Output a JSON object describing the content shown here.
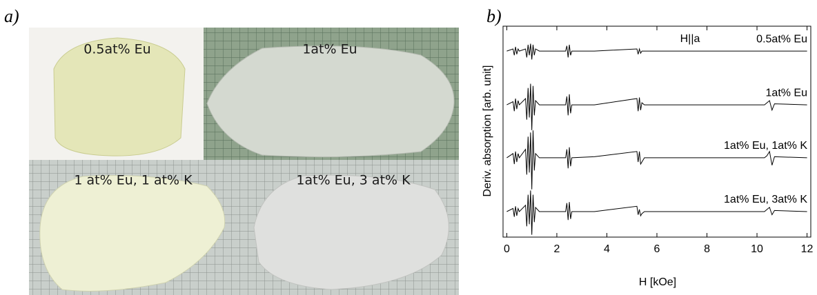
{
  "panel_a": {
    "label": "a)",
    "photos": [
      "0.5at% Eu",
      "1at% Eu",
      "1 at% Eu, 1 at% K",
      "1at% Eu, 3 at% K"
    ]
  },
  "chart_data": {
    "type": "line",
    "panel_label": "b)",
    "annotation": "H||a",
    "xlabel": "H [kOe]",
    "ylabel": "Deriv. absorption [arb. unit]",
    "xlim": [
      -0.15,
      12.15
    ],
    "xticks": [
      0,
      2,
      4,
      6,
      8,
      10,
      12
    ],
    "ylim": [
      0,
      10
    ],
    "x": [
      0,
      0.25,
      0.3,
      0.35,
      0.4,
      0.45,
      0.5,
      0.75,
      0.8,
      0.85,
      0.9,
      0.95,
      1.0,
      1.05,
      1.1,
      1.15,
      1.3,
      2.35,
      2.4,
      2.45,
      2.5,
      2.55,
      2.6,
      3.5,
      5.2,
      5.25,
      5.3,
      5.35,
      5.4,
      5.5,
      10.3,
      10.4,
      10.5,
      10.6,
      10.7,
      12
    ],
    "series": [
      {
        "name": "0.5at% Eu",
        "color": "#000000",
        "values": [
          8.82,
          8.92,
          8.62,
          9.02,
          8.67,
          8.92,
          8.82,
          8.92,
          8.52,
          9.12,
          8.62,
          9.17,
          8.42,
          9.12,
          8.62,
          8.92,
          8.82,
          8.82,
          9.07,
          8.52,
          9.12,
          8.62,
          8.82,
          8.82,
          8.92,
          8.67,
          8.92,
          8.72,
          8.82,
          8.82,
          8.82,
          8.82,
          8.82,
          8.82,
          8.82,
          8.82
        ]
      },
      {
        "name": "1at% Eu",
        "color": "#000000",
        "values": [
          6.27,
          6.42,
          5.97,
          6.57,
          6.07,
          6.47,
          6.27,
          6.57,
          5.57,
          7.07,
          5.67,
          7.27,
          5.07,
          7.17,
          5.77,
          6.47,
          6.27,
          6.27,
          6.67,
          5.77,
          6.77,
          5.87,
          6.27,
          6.27,
          6.57,
          5.97,
          6.62,
          6.02,
          6.37,
          6.27,
          6.27,
          6.37,
          6.47,
          6.02,
          6.32,
          6.27
        ]
      },
      {
        "name": "1at% Eu, 1at% K",
        "color": "#000000",
        "values": [
          3.76,
          3.96,
          3.46,
          4.06,
          3.56,
          3.96,
          3.76,
          4.16,
          2.96,
          4.76,
          3.06,
          4.96,
          2.26,
          5.06,
          3.16,
          3.96,
          3.76,
          3.76,
          4.16,
          3.26,
          4.26,
          3.36,
          3.76,
          3.81,
          4.06,
          3.56,
          4.06,
          3.46,
          3.56,
          3.76,
          3.76,
          3.86,
          4.06,
          3.41,
          3.81,
          3.76
        ]
      },
      {
        "name": "1at% Eu, 3at% K",
        "color": "#000000",
        "values": [
          1.21,
          1.36,
          0.96,
          1.46,
          1.01,
          1.36,
          1.21,
          1.51,
          0.51,
          2.01,
          0.61,
          2.21,
          0.11,
          2.01,
          0.71,
          1.41,
          1.21,
          1.21,
          1.61,
          0.81,
          1.66,
          0.86,
          1.21,
          1.21,
          1.46,
          1.06,
          1.31,
          1.01,
          1.11,
          1.21,
          1.21,
          1.31,
          1.41,
          1.06,
          1.26,
          1.21
        ]
      }
    ]
  }
}
